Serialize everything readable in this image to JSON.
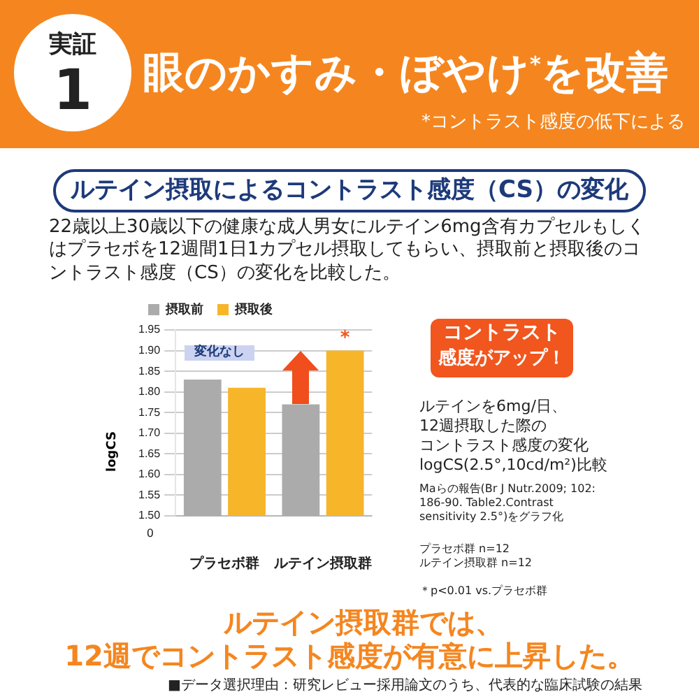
{
  "chart_data": {
    "type": "bar",
    "title": "眼のかすみ・ぼやけ$^{*}$を改善",
    "subtitle": "ルテイン摂取によるコントラスト感度（CS）の変化",
    "ylabel": "logCS",
    "categories": [
      "プラセボ群",
      "ルテイン摂取群"
    ],
    "series": [
      {
        "name": "摂取前",
        "color": "#ababab",
        "values": [
          1.83,
          1.77
        ]
      },
      {
        "name": "摂取後",
        "color": "#f7b52a",
        "values": [
          1.81,
          1.9
        ]
      }
    ],
    "ylim": [
      1.5,
      1.95
    ],
    "yticks": [
      {
        "value": 1.5,
        "label": "1.50"
      },
      1.55,
      {
        "value": 1.6,
        "label": "1.60"
      },
      1.65,
      {
        "value": 1.7,
        "label": "1.70"
      },
      1.75,
      {
        "value": 1.8,
        "label": "1.80"
      },
      1.85,
      {
        "value": 1.9,
        "label": "1.90"
      },
      1.95
    ],
    "grid": "y",
    "legend": "top left",
    "annotations": [
      "実証",
      "1",
      "*コントラスト感度の低下による",
      "22歳以上30歳以下の健康な成人男女にルテイン6mg含有カプセルもしくはプラセボを12週間1日1カプセル摂取してもらい、摂取前と摂取後のコントラスト感度（CS）の変化を比較した。",
      "変化なし",
      {
        "text": "*",
        "x": "ルテイン摂取群",
        "y": 1.9
      },
      "コントラスト",
      "感度がアップ！",
      "ルテインを6mg/日、",
      "12週摂取した際の",
      "コントラスト感度の変化",
      "logCS(2.5°,10cd/m²)比較",
      "Maらの報告(Br J Nutr.2009; 102:\n186-90. Table2.Contrast\nsensitivity 2.5°)をグラフ化",
      "プラセボ群 n=12\nルテイン摂取群 n=12",
      "＊p<0.01 vs.プラセボ群",
      "ルテイン摂取群では、",
      "12週でコントラスト感度が有意に上昇した。",
      "■データ選択理由：研究レビュー採用論文のうち、代表的な臨床試験の結果",
      "0"
    ]
  }
}
